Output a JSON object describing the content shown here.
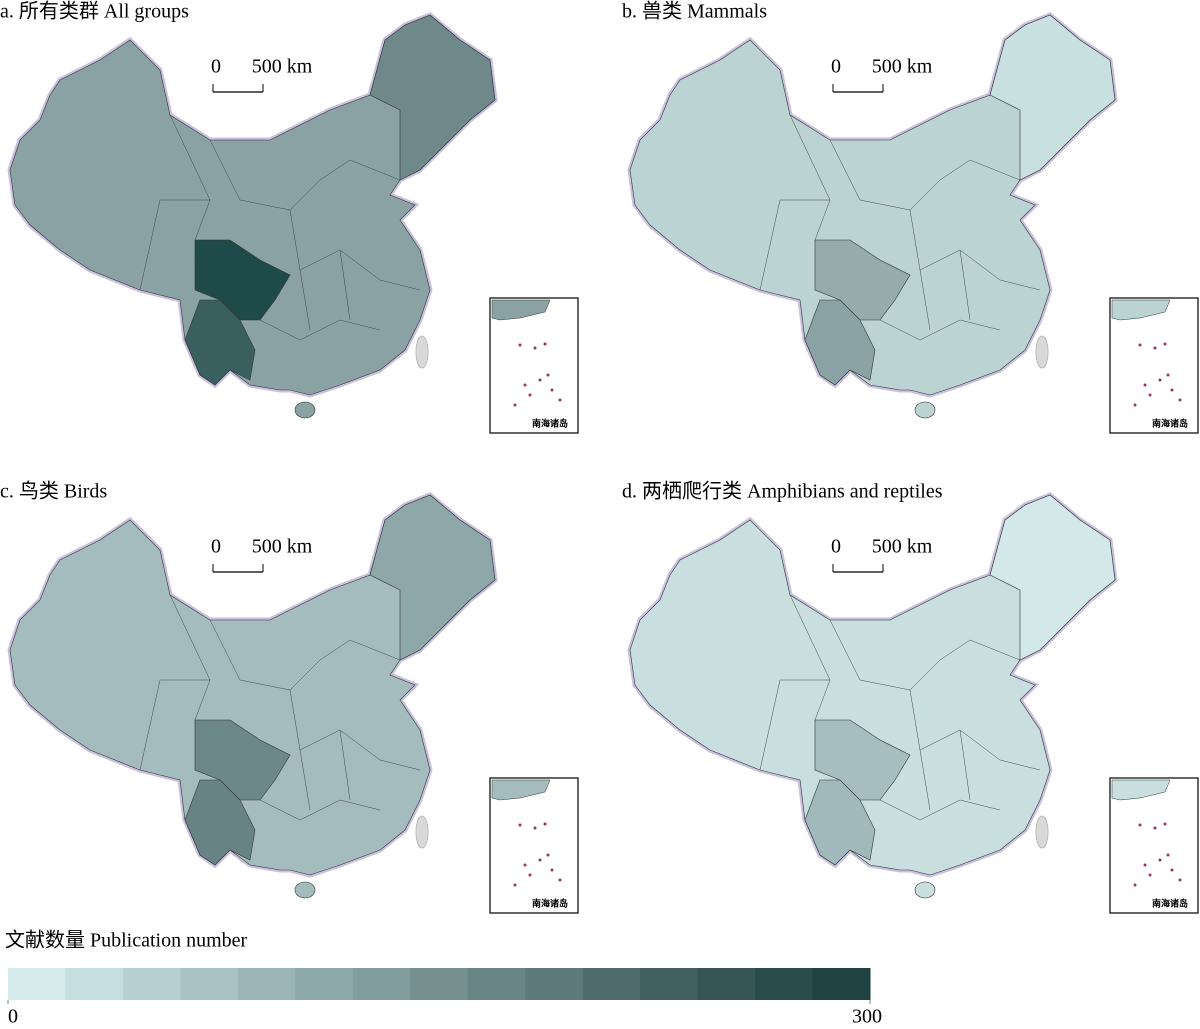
{
  "panels": [
    {
      "title": "a. 所有类群 All groups",
      "scale": [
        "0",
        "500 km"
      ],
      "inset_label": "南海诸岛",
      "base_color": "#8aa2a4",
      "northeast_color": "#6f898b",
      "sichuan_color": "#1f4a4a",
      "yunnan_color": "#3a5f5f"
    },
    {
      "title": "b. 兽类 Mammals",
      "scale": [
        "0",
        "500 km"
      ],
      "inset_label": "南海诸岛",
      "base_color": "#bcd3d4",
      "northeast_color": "#c9e0e0",
      "sichuan_color": "#95abac",
      "yunnan_color": "#8aa2a3"
    },
    {
      "title": "c. 鸟类 Birds",
      "scale": [
        "0",
        "500 km"
      ],
      "inset_label": "南海诸岛",
      "base_color": "#a4bcbe",
      "northeast_color": "#8ea7a9",
      "sichuan_color": "#6c8888",
      "yunnan_color": "#678384"
    },
    {
      "title": "d. 两栖爬行类 Amphibians and reptiles",
      "scale": [
        "0",
        "500 km"
      ],
      "inset_label": "南海诸岛",
      "base_color": "#c8dedf",
      "northeast_color": "#d3e8e9",
      "sichuan_color": "#a6bebf",
      "yunnan_color": "#a1b9ba"
    }
  ],
  "legend": {
    "title": "文献数量 Publication number",
    "ticks": [
      0,
      300
    ],
    "colors": [
      "#d6ebec",
      "#c6dfe0",
      "#b6d0d1",
      "#a9c3c4",
      "#9bb5b6",
      "#8ea9aa",
      "#829d9e",
      "#76908f",
      "#6a8585",
      "#5e7979",
      "#4f6b6b",
      "#416161",
      "#365656",
      "#2b4c4c",
      "#1f4242"
    ]
  }
}
